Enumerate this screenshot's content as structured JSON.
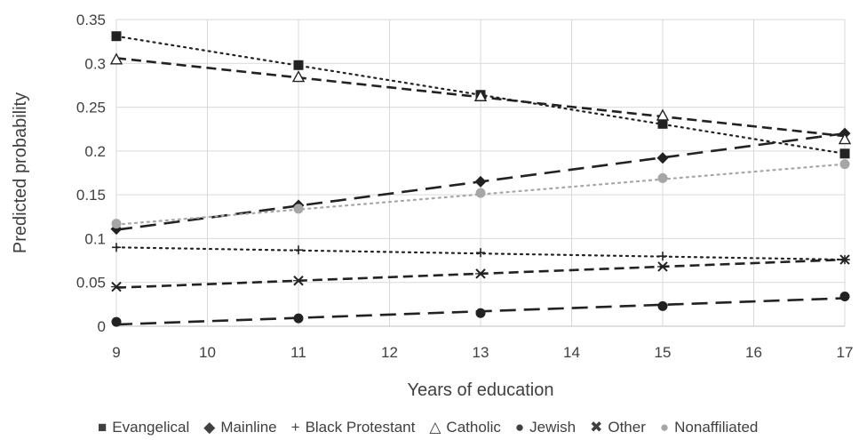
{
  "chart_data": {
    "type": "line",
    "title": "",
    "xlabel": "Years of education",
    "ylabel": "Predicted probability",
    "x": [
      9,
      11,
      13,
      15,
      17
    ],
    "xlim": [
      9,
      17
    ],
    "xticks": [
      9,
      10,
      11,
      12,
      13,
      14,
      15,
      16,
      17
    ],
    "ylim": [
      0,
      0.35
    ],
    "yticks": [
      0,
      0.05,
      0.1,
      0.15,
      0.2,
      0.25,
      0.3,
      0.35
    ],
    "ytick_labels": [
      "0",
      "0.05",
      "0.1",
      "0.15",
      "0.2",
      "0.25",
      "0.3",
      "0.35"
    ],
    "grid": true,
    "legend_position": "bottom",
    "series": [
      {
        "name": "Evangelical",
        "marker": "square",
        "marker_glyph": "■",
        "color": "#222222",
        "line": "dotted",
        "values": [
          0.331,
          0.298,
          0.264,
          0.231,
          0.197
        ],
        "trend": [
          0.331,
          0.197
        ]
      },
      {
        "name": "Mainline",
        "marker": "diamond",
        "marker_glyph": "◆",
        "color": "#222222",
        "line": "longdash",
        "values": [
          0.111,
          0.138,
          0.165,
          0.192,
          0.22
        ],
        "trend": [
          0.11,
          0.22
        ]
      },
      {
        "name": "Black Protestant",
        "marker": "plus",
        "marker_glyph": "+",
        "color": "#222222",
        "line": "dotted",
        "values": [
          0.09,
          0.087,
          0.084,
          0.08,
          0.076
        ],
        "trend": [
          0.09,
          0.076
        ]
      },
      {
        "name": "Catholic",
        "marker": "triangle",
        "marker_glyph": "△",
        "color": "#222222",
        "line": "dash",
        "values": [
          0.304,
          0.284,
          0.262,
          0.24,
          0.213
        ],
        "trend": [
          0.306,
          0.217
        ]
      },
      {
        "name": "Jewish",
        "marker": "circle",
        "marker_glyph": "●",
        "color": "#222222",
        "line": "longdash",
        "values": [
          0.005,
          0.009,
          0.015,
          0.023,
          0.034
        ],
        "trend": [
          0.002,
          0.032
        ]
      },
      {
        "name": "Other",
        "marker": "x",
        "marker_glyph": "✖",
        "color": "#222222",
        "line": "dash",
        "values": [
          0.045,
          0.052,
          0.06,
          0.068,
          0.076
        ],
        "trend": [
          0.044,
          0.076
        ]
      },
      {
        "name": "Nonaffiliated",
        "marker": "circle-gray",
        "marker_glyph": "●",
        "color": "#a6a6a6",
        "line": "dotted",
        "values": [
          0.117,
          0.134,
          0.152,
          0.169,
          0.185
        ],
        "trend": [
          0.116,
          0.185
        ]
      }
    ]
  }
}
